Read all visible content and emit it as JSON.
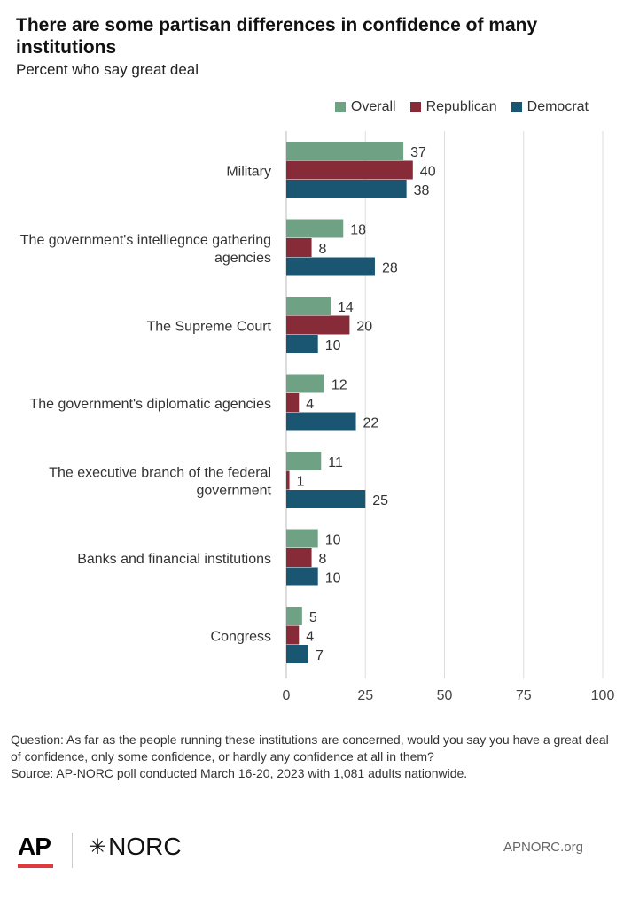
{
  "title": "There are some partisan differences in confidence of many institutions",
  "subtitle": "Percent who say great deal",
  "legend": [
    {
      "label": "Overall",
      "color": "#6fa284"
    },
    {
      "label": "Republican",
      "color": "#882b38"
    },
    {
      "label": "Democrat",
      "color": "#1a5672"
    }
  ],
  "chart_data": {
    "type": "bar",
    "orientation": "horizontal",
    "categories": [
      [
        "Military"
      ],
      [
        "The government's intelliegnce gathering",
        "agencies"
      ],
      [
        "The Supreme Court"
      ],
      [
        "The government's diplomatic agencies"
      ],
      [
        "The executive branch of the federal",
        "government"
      ],
      [
        "Banks and financial institutions"
      ],
      [
        "Congress"
      ]
    ],
    "series": [
      {
        "name": "Overall",
        "color": "#6fa284",
        "values": [
          37,
          18,
          14,
          12,
          11,
          10,
          5
        ]
      },
      {
        "name": "Republican",
        "color": "#882b38",
        "values": [
          40,
          8,
          20,
          4,
          1,
          8,
          4
        ]
      },
      {
        "name": "Democrat",
        "color": "#1a5672",
        "values": [
          38,
          28,
          10,
          22,
          25,
          10,
          7
        ]
      }
    ],
    "xlim": [
      0,
      100
    ],
    "xticks": [
      0,
      25,
      50,
      75,
      100
    ],
    "grid": true,
    "legend_position": "top-right"
  },
  "footnote": {
    "question": "Question: As far as the people running these institutions are concerned, would you say you have a great deal of confidence, only some confidence, or hardly any confidence at all in them?",
    "source": "Source: AP-NORC poll conducted March 16-20, 2023 with 1,081 adults nationwide."
  },
  "footer": {
    "ap_logo": "AP",
    "norc_star": "✳",
    "norc_logo": "NORC",
    "site": "APNORC.org"
  }
}
